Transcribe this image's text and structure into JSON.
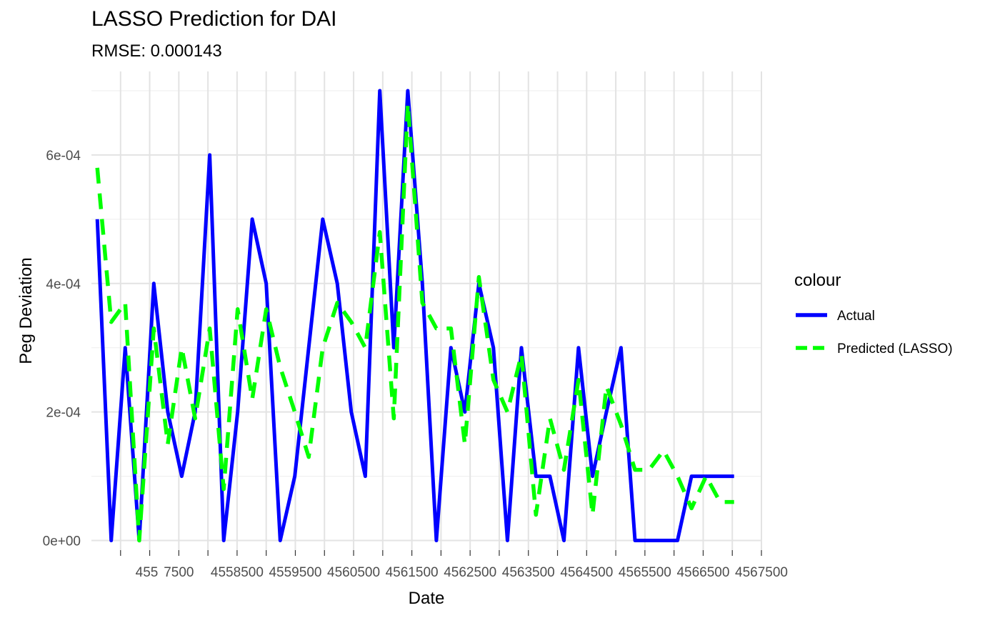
{
  "chart_data": {
    "type": "line",
    "title": "LASSO Prediction for DAI",
    "subtitle": "RMSE: 0.000143",
    "xlabel": "Date",
    "ylabel": "Peg Deviation",
    "xlim": [
      4556000,
      4567500
    ],
    "ylim": [
      -1.5e-05,
      0.00073
    ],
    "x_ticks": [
      4556500,
      4557000,
      4557500,
      4558000,
      4558500,
      4559000,
      4559500,
      4560000,
      4560500,
      4561000,
      4561500,
      4562000,
      4562500,
      4563000,
      4563500,
      4564000,
      4564500,
      4565000,
      4565500,
      4566000,
      4566500,
      4567000,
      4567500
    ],
    "x_tick_labels": [
      "455",
      "7500",
      "4558500",
      "4559500",
      "4560500",
      "4561500",
      "4562500",
      "4563500",
      "4564500",
      "4565500",
      "4566500",
      "4567500"
    ],
    "x_tick_label_positions": [
      4556500,
      4557500,
      4558500,
      4559500,
      4560500,
      4561500,
      4562500,
      4563500,
      4564500,
      4565500,
      4566500,
      4567500
    ],
    "y_ticks": [
      0,
      0.0002,
      0.0004,
      0.0006
    ],
    "y_tick_labels": [
      "0e+00",
      "2e-04",
      "4e-04",
      "6e-04"
    ],
    "y_minor_ticks": [
      0.0001,
      0.0003,
      0.0005,
      0.0007
    ],
    "grid": true,
    "legend": {
      "title": "colour",
      "placement": "right"
    },
    "series": [
      {
        "name": "Actual",
        "color": "#0000ff",
        "style": "solid",
        "x": [
          4556100,
          4556340,
          4556580,
          4556820,
          4557070,
          4557310,
          4557550,
          4557780,
          4558030,
          4558270,
          4558510,
          4558760,
          4559000,
          4559240,
          4559490,
          4559730,
          4559970,
          4560220,
          4560460,
          4560700,
          4560950,
          4561190,
          4561430,
          4561680,
          4561920,
          4562170,
          4562410,
          4562650,
          4562900,
          4563140,
          4563380,
          4563630,
          4563870,
          4564110,
          4564360,
          4564600,
          4564840,
          4565090,
          4565330,
          4565570,
          4565820,
          4566060,
          4566300,
          4566550,
          4566790,
          4567030
        ],
        "values": [
          0.0005,
          0.0,
          0.0003,
          0.0,
          0.0004,
          0.0002,
          0.0001,
          0.0002,
          0.0006,
          0.0,
          0.0002,
          0.0005,
          0.0004,
          0.0,
          0.0001,
          0.0003,
          0.0005,
          0.0004,
          0.0002,
          0.0001,
          0.0007,
          0.0003,
          0.0007,
          0.0004,
          0.0,
          0.0003,
          0.0002,
          0.0004,
          0.0003,
          0.0,
          0.0003,
          0.0001,
          0.0001,
          0.0,
          0.0003,
          0.0001,
          0.0002,
          0.0003,
          0.0,
          0.0,
          0.0,
          0.0,
          0.0001,
          0.0001,
          0.0001,
          0.0001
        ]
      },
      {
        "name": "Predicted (LASSO)",
        "color": "#00ff00",
        "style": "dashed",
        "x": [
          4556100,
          4556340,
          4556580,
          4556820,
          4557070,
          4557310,
          4557550,
          4557780,
          4558030,
          4558270,
          4558510,
          4558760,
          4559000,
          4559240,
          4559490,
          4559730,
          4559970,
          4560220,
          4560460,
          4560700,
          4560950,
          4561190,
          4561430,
          4561680,
          4561920,
          4562170,
          4562410,
          4562650,
          4562900,
          4563140,
          4563380,
          4563630,
          4563870,
          4564110,
          4564360,
          4564600,
          4564840,
          4565090,
          4565330,
          4565570,
          4565820,
          4566060,
          4566300,
          4566550,
          4566790,
          4567030
        ],
        "values": [
          0.00058,
          0.00034,
          0.00037,
          0.0,
          0.00033,
          0.00015,
          0.0003,
          0.00019,
          0.00033,
          8e-05,
          0.00036,
          0.00022,
          0.00036,
          0.00027,
          0.0002,
          0.00013,
          0.0003,
          0.00037,
          0.00034,
          0.0003,
          0.00048,
          0.00019,
          0.00068,
          0.00037,
          0.00033,
          0.00033,
          0.00015,
          0.00041,
          0.00025,
          0.0002,
          0.00029,
          4e-05,
          0.00019,
          0.00011,
          0.00025,
          4e-05,
          0.00024,
          0.00018,
          0.00011,
          0.00011,
          0.00014,
          0.0001,
          5e-05,
          0.0001,
          6e-05,
          6e-05
        ]
      }
    ]
  }
}
